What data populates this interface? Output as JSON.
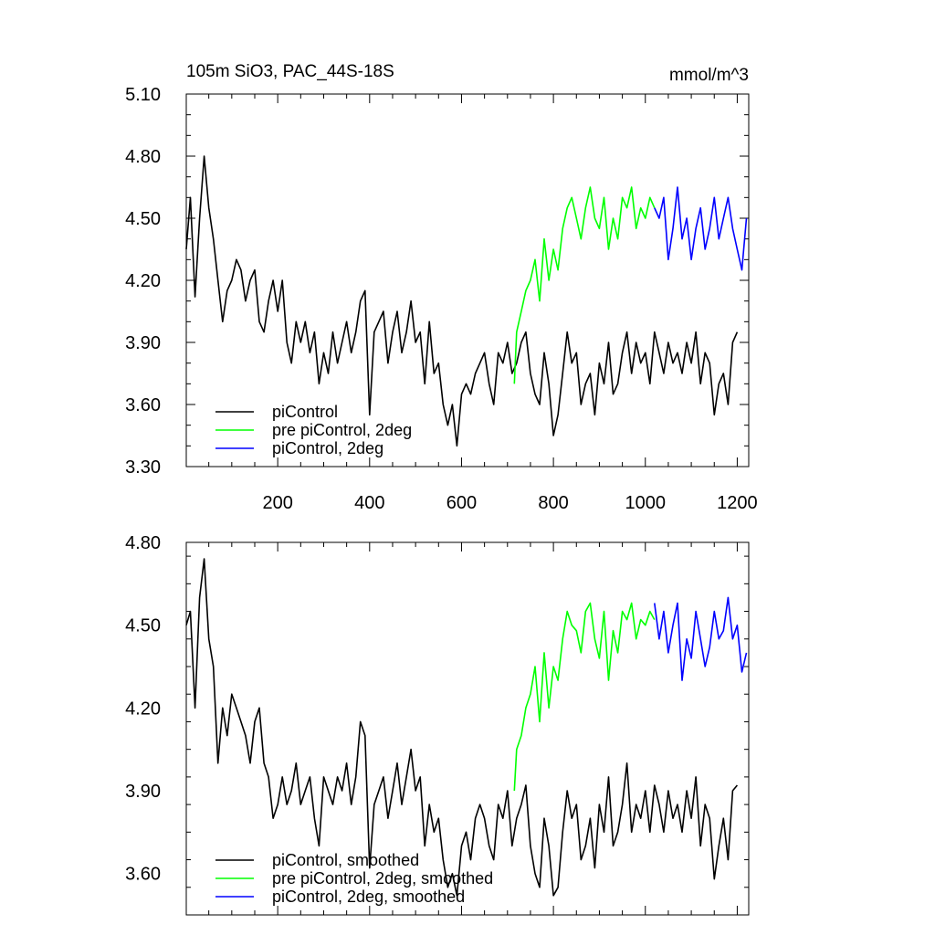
{
  "figure": {
    "title_left": "105m SiO3, PAC_44S-18S",
    "title_right": "mmol/m^3"
  },
  "chart_data": [
    {
      "type": "line",
      "title": "105m SiO3, PAC_44S-18S",
      "units": "mmol/m^3",
      "xlim": [
        1,
        1225
      ],
      "ylim": [
        3.3,
        5.1
      ],
      "xticks": [
        200,
        400,
        600,
        800,
        1000,
        1200
      ],
      "xtick_labels": [
        "200",
        "400",
        "600",
        "800",
        "1000",
        "1200"
      ],
      "yticks": [
        3.3,
        3.6,
        3.9,
        4.2,
        4.5,
        4.8,
        5.1
      ],
      "ytick_labels": [
        "3.30",
        "3.60",
        "3.90",
        "4.20",
        "4.50",
        "4.80",
        "5.10"
      ],
      "legend_position": "bottom-left",
      "series": [
        {
          "name": "piControl",
          "color": "#000000",
          "x": [
            1,
            10,
            20,
            30,
            40,
            50,
            60,
            70,
            80,
            90,
            100,
            110,
            120,
            130,
            140,
            150,
            160,
            170,
            180,
            190,
            200,
            210,
            220,
            230,
            240,
            250,
            260,
            270,
            280,
            290,
            300,
            310,
            320,
            330,
            340,
            350,
            360,
            370,
            380,
            390,
            400,
            410,
            420,
            430,
            440,
            450,
            460,
            470,
            480,
            490,
            500,
            510,
            520,
            530,
            540,
            550,
            560,
            570,
            580,
            590,
            600,
            610,
            620,
            630,
            640,
            650,
            660,
            670,
            680,
            690,
            700,
            710,
            720,
            730,
            740,
            750,
            760,
            770,
            780,
            790,
            800,
            810,
            820,
            830,
            840,
            850,
            860,
            870,
            880,
            890,
            900,
            910,
            920,
            930,
            940,
            950,
            960,
            970,
            980,
            990,
            1000,
            1010,
            1020,
            1030,
            1040,
            1050,
            1060,
            1070,
            1080,
            1090,
            1100,
            1110,
            1120,
            1130,
            1140,
            1150,
            1160,
            1170,
            1180,
            1190,
            1200
          ],
          "y": [
            4.35,
            4.6,
            4.12,
            4.5,
            4.8,
            4.55,
            4.4,
            4.2,
            4.0,
            4.15,
            4.2,
            4.3,
            4.25,
            4.1,
            4.2,
            4.25,
            4.0,
            3.95,
            4.1,
            4.2,
            4.05,
            4.2,
            3.9,
            3.8,
            4.0,
            3.9,
            4.0,
            3.85,
            3.95,
            3.7,
            3.85,
            3.75,
            3.95,
            3.8,
            3.9,
            4.0,
            3.85,
            3.95,
            4.1,
            4.15,
            3.55,
            3.95,
            4.0,
            4.05,
            3.8,
            3.95,
            4.05,
            3.85,
            3.95,
            4.1,
            3.9,
            3.95,
            3.7,
            4.0,
            3.75,
            3.8,
            3.6,
            3.5,
            3.6,
            3.4,
            3.65,
            3.7,
            3.65,
            3.75,
            3.8,
            3.85,
            3.7,
            3.6,
            3.85,
            3.8,
            3.9,
            3.75,
            3.8,
            3.9,
            3.95,
            3.75,
            3.65,
            3.6,
            3.85,
            3.7,
            3.45,
            3.55,
            3.75,
            3.95,
            3.8,
            3.85,
            3.6,
            3.7,
            3.75,
            3.55,
            3.8,
            3.7,
            3.9,
            3.65,
            3.7,
            3.85,
            3.95,
            3.75,
            3.9,
            3.8,
            3.85,
            3.7,
            3.95,
            3.85,
            3.75,
            3.9,
            3.8,
            3.85,
            3.75,
            3.9,
            3.8,
            3.95,
            3.7,
            3.85,
            3.8,
            3.55,
            3.7,
            3.75,
            3.6,
            3.9,
            3.95
          ]
        },
        {
          "name": "pre piControl, 2deg",
          "color": "#00ff00",
          "x": [
            715,
            720,
            730,
            740,
            750,
            760,
            770,
            780,
            790,
            800,
            810,
            820,
            830,
            840,
            850,
            860,
            870,
            880,
            890,
            900,
            910,
            920,
            930,
            940,
            950,
            960,
            970,
            980,
            990,
            1000,
            1010,
            1020
          ],
          "y": [
            3.7,
            3.95,
            4.05,
            4.15,
            4.2,
            4.3,
            4.1,
            4.4,
            4.2,
            4.35,
            4.25,
            4.45,
            4.55,
            4.6,
            4.5,
            4.4,
            4.55,
            4.65,
            4.5,
            4.45,
            4.6,
            4.35,
            4.5,
            4.4,
            4.6,
            4.55,
            4.65,
            4.45,
            4.55,
            4.5,
            4.6,
            4.55
          ]
        },
        {
          "name": "piControl, 2deg",
          "color": "#0000ff",
          "x": [
            1020,
            1030,
            1040,
            1050,
            1060,
            1070,
            1080,
            1090,
            1100,
            1110,
            1120,
            1130,
            1140,
            1150,
            1160,
            1170,
            1180,
            1190,
            1200,
            1210,
            1220
          ],
          "y": [
            4.55,
            4.5,
            4.6,
            4.3,
            4.45,
            4.65,
            4.4,
            4.5,
            4.3,
            4.45,
            4.55,
            4.35,
            4.45,
            4.6,
            4.4,
            4.5,
            4.6,
            4.45,
            4.35,
            4.25,
            4.5
          ]
        }
      ]
    },
    {
      "type": "line",
      "xlim": [
        1,
        1225
      ],
      "ylim": [
        3.45,
        4.8
      ],
      "xticks": [
        200,
        400,
        600,
        800,
        1000,
        1200
      ],
      "yticks": [
        3.6,
        3.9,
        4.2,
        4.5,
        4.8
      ],
      "ytick_labels": [
        "3.60",
        "3.90",
        "4.20",
        "4.50",
        "4.80"
      ],
      "legend_position": "bottom-left",
      "series": [
        {
          "name": "piControl, smoothed",
          "color": "#000000",
          "x": [
            1,
            10,
            20,
            30,
            40,
            50,
            60,
            70,
            80,
            90,
            100,
            110,
            120,
            130,
            140,
            150,
            160,
            170,
            180,
            190,
            200,
            210,
            220,
            230,
            240,
            250,
            260,
            270,
            280,
            290,
            300,
            310,
            320,
            330,
            340,
            350,
            360,
            370,
            380,
            390,
            400,
            410,
            420,
            430,
            440,
            450,
            460,
            470,
            480,
            490,
            500,
            510,
            520,
            530,
            540,
            550,
            560,
            570,
            580,
            590,
            600,
            610,
            620,
            630,
            640,
            650,
            660,
            670,
            680,
            690,
            700,
            710,
            720,
            730,
            740,
            750,
            760,
            770,
            780,
            790,
            800,
            810,
            820,
            830,
            840,
            850,
            860,
            870,
            880,
            890,
            900,
            910,
            920,
            930,
            940,
            950,
            960,
            970,
            980,
            990,
            1000,
            1010,
            1020,
            1030,
            1040,
            1050,
            1060,
            1070,
            1080,
            1090,
            1100,
            1110,
            1120,
            1130,
            1140,
            1150,
            1160,
            1170,
            1180,
            1190,
            1200
          ],
          "y": [
            4.5,
            4.55,
            4.2,
            4.6,
            4.74,
            4.45,
            4.35,
            4.0,
            4.2,
            4.1,
            4.25,
            4.2,
            4.15,
            4.1,
            4.0,
            4.15,
            4.2,
            4.0,
            3.95,
            3.8,
            3.85,
            3.95,
            3.85,
            3.9,
            4.0,
            3.85,
            3.9,
            3.95,
            3.8,
            3.7,
            3.95,
            3.9,
            3.85,
            3.95,
            3.9,
            4.0,
            3.85,
            3.95,
            4.15,
            4.1,
            3.62,
            3.85,
            3.9,
            3.95,
            3.8,
            3.9,
            4.0,
            3.85,
            3.95,
            4.05,
            3.9,
            3.95,
            3.7,
            3.85,
            3.75,
            3.8,
            3.65,
            3.55,
            3.6,
            3.52,
            3.7,
            3.75,
            3.65,
            3.8,
            3.85,
            3.8,
            3.7,
            3.65,
            3.85,
            3.8,
            3.9,
            3.7,
            3.8,
            3.85,
            3.92,
            3.7,
            3.6,
            3.55,
            3.8,
            3.7,
            3.52,
            3.55,
            3.75,
            3.9,
            3.8,
            3.85,
            3.65,
            3.7,
            3.8,
            3.62,
            3.85,
            3.75,
            3.95,
            3.7,
            3.75,
            3.85,
            4.0,
            3.75,
            3.85,
            3.8,
            3.9,
            3.75,
            3.92,
            3.85,
            3.75,
            3.9,
            3.8,
            3.85,
            3.75,
            3.9,
            3.8,
            3.95,
            3.7,
            3.85,
            3.8,
            3.58,
            3.7,
            3.8,
            3.65,
            3.9,
            3.92
          ]
        },
        {
          "name": "pre piControl, 2deg, smoothed",
          "color": "#00ff00",
          "x": [
            715,
            720,
            730,
            740,
            750,
            760,
            770,
            780,
            790,
            800,
            810,
            820,
            830,
            840,
            850,
            860,
            870,
            880,
            890,
            900,
            910,
            920,
            930,
            940,
            950,
            960,
            970,
            980,
            990,
            1000,
            1010,
            1020
          ],
          "y": [
            3.9,
            4.05,
            4.1,
            4.2,
            4.25,
            4.35,
            4.15,
            4.4,
            4.2,
            4.35,
            4.3,
            4.45,
            4.55,
            4.5,
            4.48,
            4.4,
            4.55,
            4.58,
            4.45,
            4.38,
            4.55,
            4.3,
            4.48,
            4.4,
            4.55,
            4.52,
            4.58,
            4.45,
            4.52,
            4.5,
            4.55,
            4.52
          ]
        },
        {
          "name": "piControl, 2deg, smoothed",
          "color": "#0000ff",
          "x": [
            1020,
            1030,
            1040,
            1050,
            1060,
            1070,
            1080,
            1090,
            1100,
            1110,
            1120,
            1130,
            1140,
            1150,
            1160,
            1170,
            1180,
            1190,
            1200,
            1210,
            1220
          ],
          "y": [
            4.58,
            4.45,
            4.55,
            4.4,
            4.5,
            4.58,
            4.3,
            4.45,
            4.38,
            4.55,
            4.45,
            4.35,
            4.42,
            4.55,
            4.45,
            4.48,
            4.6,
            4.45,
            4.5,
            4.33,
            4.4
          ]
        }
      ]
    }
  ]
}
